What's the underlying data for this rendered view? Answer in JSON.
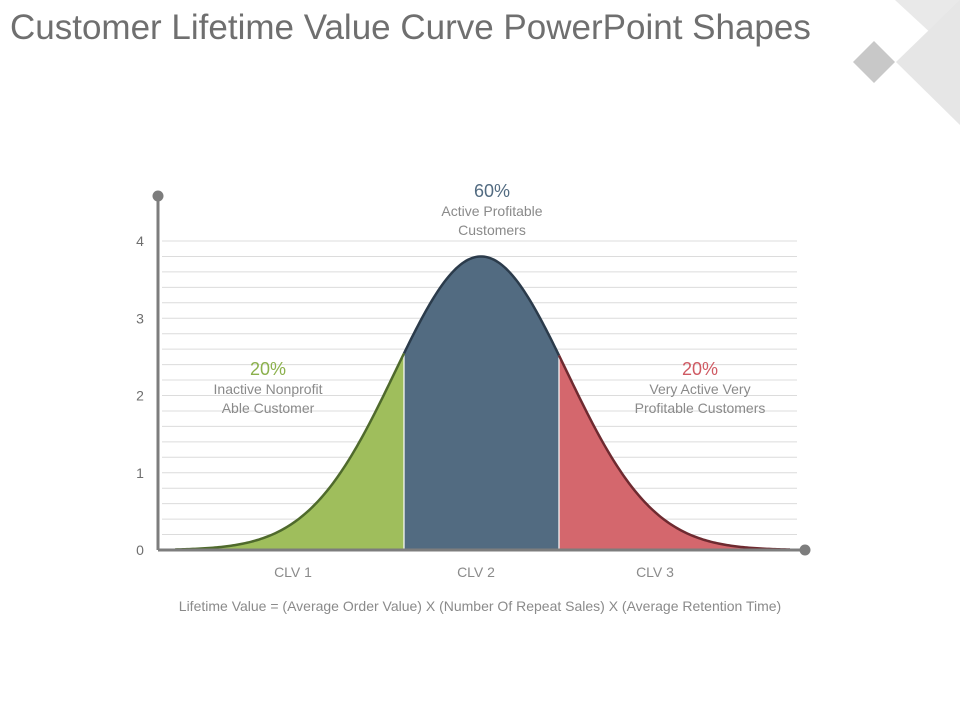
{
  "title": "Customer Lifetime Value Curve PowerPoint Shapes",
  "colors": {
    "clv1": "#9fbe5c",
    "clv2": "#526b81",
    "clv3": "#d4676d",
    "clv1_pct": "#8bb04c",
    "clv2_pct": "#526b81",
    "clv3_pct": "#cf5a63"
  },
  "chart_data": {
    "type": "area",
    "ylim": [
      0,
      4
    ],
    "y_ticks": [
      "0",
      "1",
      "2",
      "3",
      "4"
    ],
    "categories": [
      "CLV 1",
      "CLV 2",
      "CLV 3"
    ],
    "peak_value": 3.8,
    "segments": [
      {
        "name": "CLV 1",
        "percent": "20%",
        "label_line1": "Inactive Nonprofit",
        "label_line2": "Able Customer",
        "color": "#9fbe5c"
      },
      {
        "name": "CLV 2",
        "percent": "60%",
        "label_line1": "Active Profitable",
        "label_line2": "Customers",
        "color": "#526b81"
      },
      {
        "name": "CLV 3",
        "percent": "20%",
        "label_line1": "Very Active Very",
        "label_line2": "Profitable Customers",
        "color": "#d4676d"
      }
    ]
  },
  "formula": "Lifetime Value = (Average Order Value) X (Number Of Repeat Sales) X (Average Retention Time)"
}
